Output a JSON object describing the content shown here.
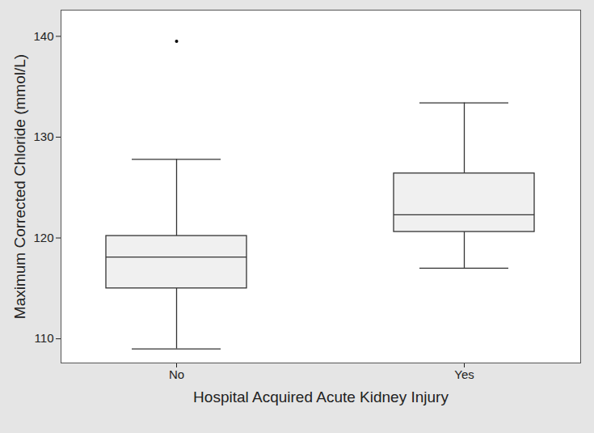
{
  "chart_data": {
    "type": "box",
    "x_label": "Hospital Acquired Acute Kidney Injury",
    "y_label": "Maximum Corrected Chloride (mmol/L)",
    "categories": [
      "No",
      "Yes"
    ],
    "boxes": [
      {
        "whisker_low": 109,
        "q1": 115,
        "median": 118.1,
        "q3": 120.2,
        "whisker_high": 127.8,
        "outliers": [
          139.5
        ]
      },
      {
        "whisker_low": 117,
        "q1": 120.6,
        "median": 122.3,
        "q3": 126.4,
        "whisker_high": 133.4,
        "outliers": []
      }
    ],
    "color": "#f0f0f0",
    "ylim": [
      107.6,
      142.6
    ],
    "yticks": [
      110,
      120,
      130,
      140
    ],
    "grid": false
  }
}
